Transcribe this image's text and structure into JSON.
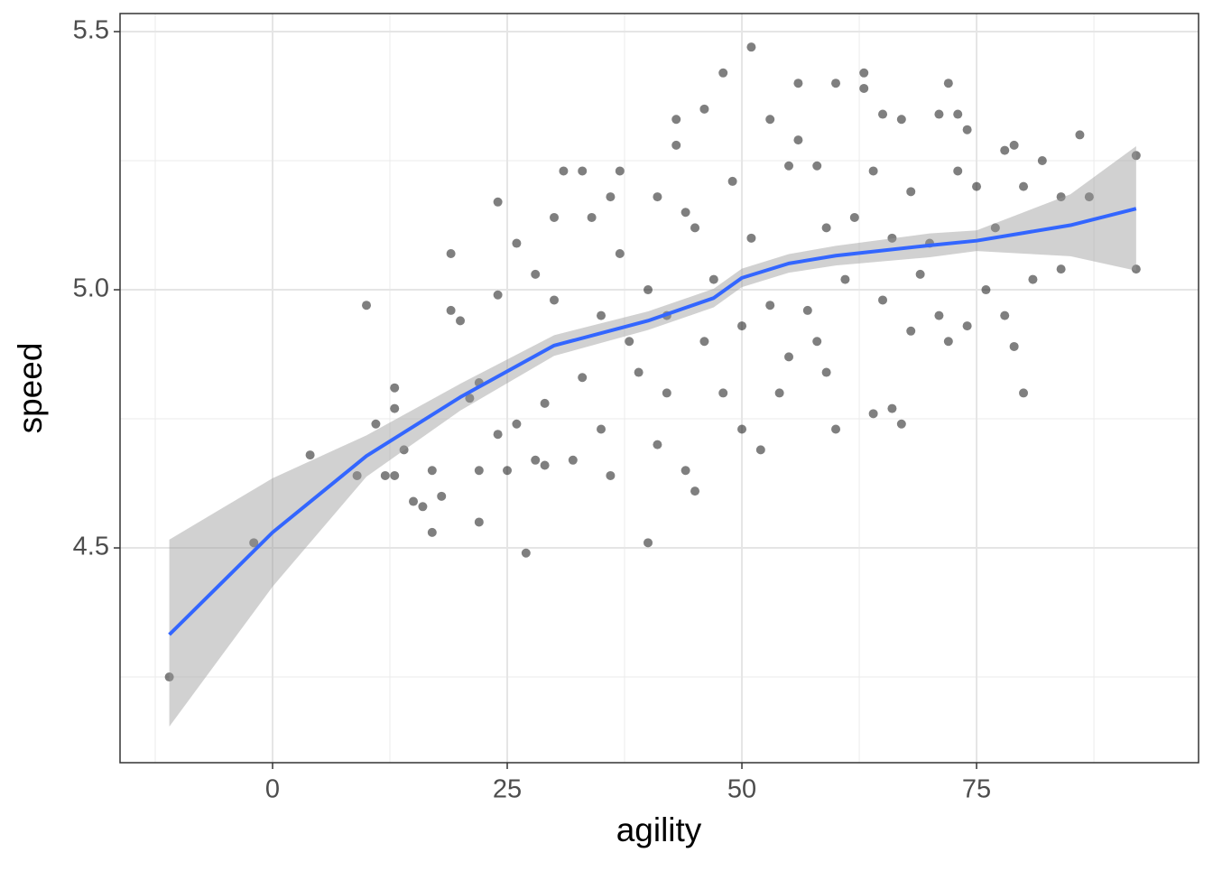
{
  "chart_data": {
    "type": "scatter",
    "xlabel": "agility",
    "ylabel": "speed",
    "xlim": [
      -16.25,
      98.65
    ],
    "ylim": [
      4.084,
      5.535
    ],
    "xticks": [
      0,
      25,
      50,
      75
    ],
    "yticks": [
      4.5,
      {
        "value": 5,
        "label": "5.0"
      },
      5.5
    ],
    "x_minor_ticks": [
      -12.5,
      12.5,
      37.5,
      62.5,
      87.5
    ],
    "y_minor_ticks": [
      4.25,
      4.75,
      5.25
    ],
    "grid": true,
    "color": "#000000",
    "alpha": 0.5,
    "x": [
      -11,
      -2,
      4,
      9,
      10,
      11,
      12,
      13,
      13,
      13,
      14,
      15,
      16,
      17,
      17,
      18,
      19,
      19,
      20,
      21,
      22,
      22,
      22,
      24,
      24,
      24,
      25,
      26,
      26,
      27,
      28,
      28,
      29,
      29,
      30,
      30,
      31,
      32,
      33,
      33,
      34,
      35,
      35,
      36,
      36,
      37,
      37,
      38,
      39,
      40,
      40,
      41,
      41,
      42,
      42,
      43,
      43,
      44,
      44,
      45,
      45,
      46,
      46,
      47,
      48,
      48,
      49,
      50,
      50,
      51,
      51,
      52,
      53,
      53,
      54,
      55,
      55,
      56,
      56,
      57,
      58,
      58,
      59,
      59,
      60,
      60,
      61,
      62,
      63,
      63,
      64,
      64,
      65,
      65,
      66,
      66,
      67,
      67,
      68,
      68,
      69,
      70,
      71,
      71,
      72,
      72,
      73,
      73,
      74,
      74,
      75,
      76,
      77,
      78,
      78,
      79,
      79,
      80,
      80,
      81,
      82,
      84,
      84,
      86,
      87,
      92,
      92
    ],
    "values": [
      4.25,
      4.51,
      4.68,
      4.64,
      4.97,
      4.74,
      4.64,
      4.81,
      4.77,
      4.64,
      4.69,
      4.59,
      4.58,
      4.53,
      4.65,
      4.6,
      5.07,
      4.96,
      4.94,
      4.79,
      4.82,
      4.65,
      4.55,
      5.17,
      4.99,
      4.72,
      4.65,
      5.09,
      4.74,
      4.49,
      5.03,
      4.67,
      4.78,
      4.66,
      5.14,
      4.98,
      5.23,
      4.67,
      5.23,
      4.83,
      5.14,
      4.95,
      4.73,
      5.18,
      4.64,
      5.23,
      5.07,
      4.9,
      4.84,
      4.51,
      5.0,
      5.18,
      4.7,
      4.95,
      4.8,
      5.33,
      5.28,
      5.15,
      4.65,
      4.61,
      5.12,
      5.35,
      4.9,
      5.02,
      5.42,
      4.8,
      5.21,
      4.73,
      4.93,
      5.47,
      5.1,
      4.69,
      5.33,
      4.97,
      4.8,
      5.24,
      4.87,
      5.4,
      5.29,
      4.96,
      5.24,
      4.9,
      4.84,
      5.12,
      5.4,
      4.73,
      5.02,
      5.14,
      5.42,
      5.39,
      4.76,
      5.23,
      5.34,
      4.98,
      5.1,
      4.77,
      5.33,
      4.74,
      4.92,
      5.19,
      5.03,
      5.09,
      5.34,
      4.95,
      5.4,
      4.9,
      5.23,
      5.34,
      5.31,
      4.93,
      5.2,
      5.0,
      5.12,
      5.27,
      4.95,
      5.28,
      4.89,
      5.2,
      4.8,
      5.02,
      5.25,
      5.18,
      5.04,
      5.3,
      5.18,
      5.26,
      5.04
    ],
    "smooth": {
      "color": "#3366ff",
      "band_color": "#999999",
      "x": [
        -11,
        0,
        10,
        20,
        30,
        40,
        47,
        50,
        55,
        60,
        70,
        75,
        80,
        85,
        92
      ],
      "y": [
        4.332,
        4.53,
        4.678,
        4.792,
        4.892,
        4.94,
        4.984,
        5.023,
        5.051,
        5.066,
        5.086,
        5.095,
        5.11,
        5.125,
        5.157
      ],
      "lower": [
        4.154,
        4.425,
        4.638,
        4.766,
        4.872,
        4.922,
        4.966,
        5.005,
        5.033,
        5.047,
        5.063,
        5.075,
        5.07,
        5.065,
        5.037
      ],
      "upper": [
        4.516,
        4.635,
        4.718,
        4.818,
        4.912,
        4.958,
        5.002,
        5.041,
        5.069,
        5.085,
        5.109,
        5.115,
        5.15,
        5.185,
        5.278
      ]
    }
  }
}
